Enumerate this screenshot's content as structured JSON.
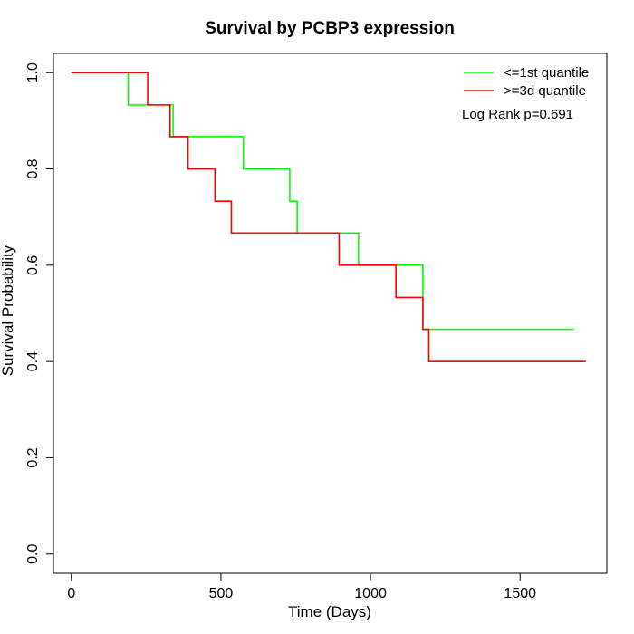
{
  "chart_data": {
    "type": "line",
    "subtype": "kaplan-meier step",
    "title": "Survival by PCBP3 expression",
    "xlabel": "Time (Days)",
    "ylabel": "Survival Probability",
    "xlim": [
      -60,
      1790
    ],
    "ylim": [
      -0.04,
      1.04
    ],
    "xticks": [
      0,
      500,
      1000,
      1500
    ],
    "yticks": [
      0.0,
      0.2,
      0.4,
      0.6,
      0.8,
      1.0
    ],
    "xtick_labels": [
      "0",
      "500",
      "1000",
      "1500"
    ],
    "ytick_labels": [
      "0.0",
      "0.2",
      "0.4",
      "0.6",
      "0.8",
      "1.0"
    ],
    "grid": false,
    "legend_position": "top-right",
    "annotation": "Log Rank p=0.691",
    "series": [
      {
        "name": "<=1st quantile",
        "color": "#00ff00",
        "x": [
          0,
          190,
          340,
          575,
          730,
          755,
          960,
          1175,
          1680
        ],
        "y": [
          1.0,
          0.933,
          0.867,
          0.8,
          0.733,
          0.667,
          0.6,
          0.467,
          0.467
        ]
      },
      {
        "name": ">=3d quantile",
        "color": "#ff0000",
        "x": [
          0,
          255,
          330,
          390,
          480,
          535,
          895,
          1085,
          1175,
          1195,
          1720
        ],
        "y": [
          1.0,
          0.933,
          0.867,
          0.8,
          0.733,
          0.667,
          0.6,
          0.533,
          0.467,
          0.4,
          0.4
        ]
      }
    ]
  }
}
